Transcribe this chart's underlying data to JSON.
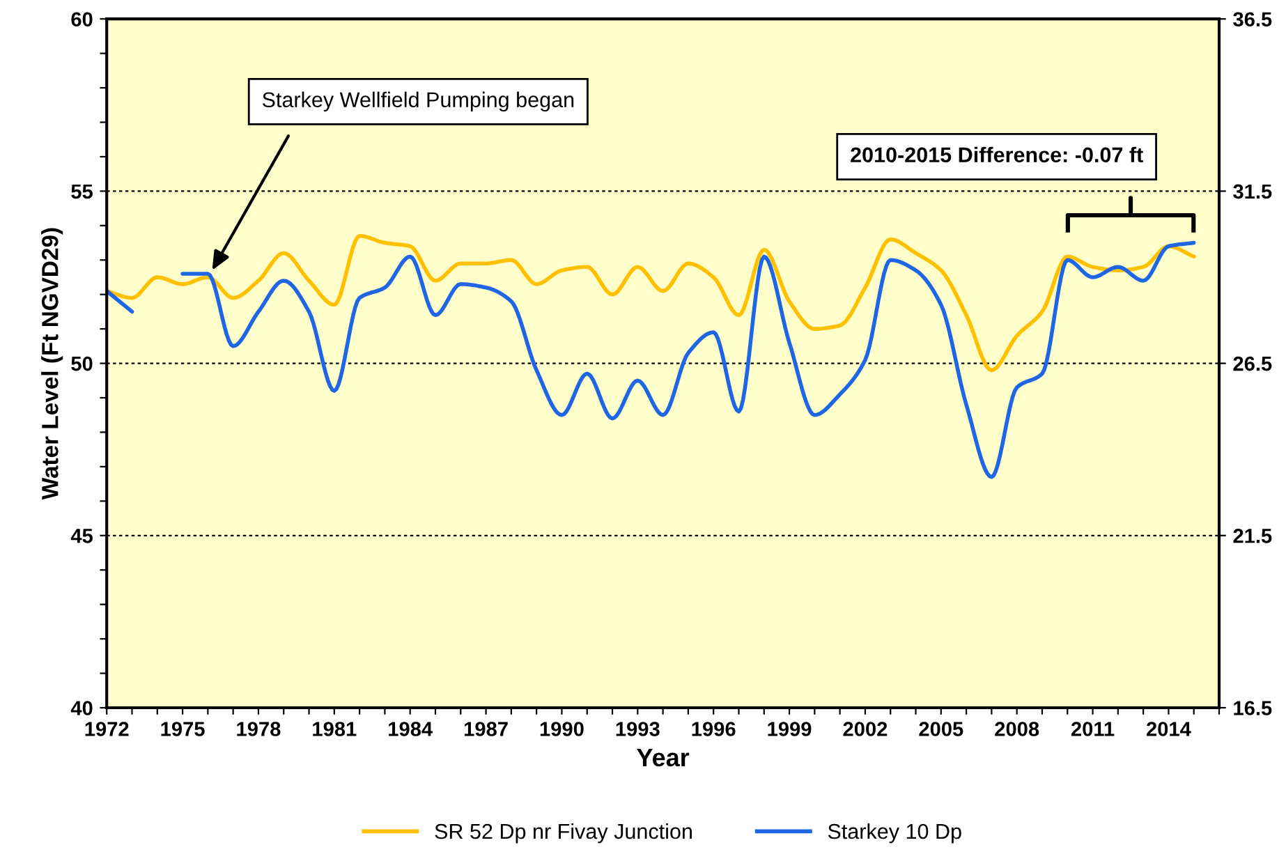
{
  "chart_data": {
    "type": "line",
    "xlabel": "Year",
    "ylabel": "Water Level (Ft NGVD29)",
    "x": [
      1972,
      1973,
      1974,
      1975,
      1976,
      1977,
      1978,
      1979,
      1980,
      1981,
      1982,
      1983,
      1984,
      1985,
      1986,
      1987,
      1988,
      1989,
      1990,
      1991,
      1992,
      1993,
      1994,
      1995,
      1996,
      1997,
      1998,
      1999,
      2000,
      2001,
      2002,
      2003,
      2004,
      2005,
      2006,
      2007,
      2008,
      2009,
      2010,
      2011,
      2012,
      2013,
      2014,
      2015
    ],
    "series": [
      {
        "name": "SR 52 Dp nr Fivay Junction",
        "color": "#ffc000",
        "values": [
          52.1,
          51.9,
          52.5,
          52.3,
          52.5,
          51.9,
          52.4,
          53.2,
          52.4,
          51.7,
          53.7,
          53.5,
          53.4,
          52.4,
          52.9,
          52.9,
          53.0,
          52.3,
          52.7,
          52.8,
          52.0,
          52.8,
          52.1,
          52.9,
          52.5,
          51.4,
          53.3,
          51.8,
          51.0,
          51.1,
          52.2,
          53.6,
          53.2,
          52.7,
          51.4,
          49.8,
          50.8,
          51.5,
          53.1,
          52.8,
          52.7,
          52.8,
          53.4,
          53.1
        ]
      },
      {
        "name": "Starkey 10 Dp",
        "color": "#1f66e5",
        "values": [
          52.1,
          51.5,
          null,
          52.6,
          52.6,
          50.5,
          51.5,
          52.4,
          51.5,
          49.2,
          51.9,
          52.2,
          53.1,
          51.4,
          52.3,
          52.2,
          51.8,
          49.8,
          48.5,
          49.7,
          48.4,
          49.5,
          48.5,
          50.3,
          50.9,
          48.6,
          53.1,
          50.6,
          48.5,
          49.1,
          50.1,
          53.0,
          52.7,
          51.7,
          48.8,
          46.7,
          49.3,
          49.7,
          53.0,
          52.5,
          52.8,
          52.4,
          53.4,
          53.5
        ]
      }
    ],
    "xlim": [
      1972,
      2016
    ],
    "xticks": [
      1972,
      {
        "value": 1973,
        "label": null
      },
      {
        "value": 1974,
        "label": null
      },
      1975,
      {
        "value": 1976,
        "label": null
      },
      {
        "value": 1977,
        "label": null
      },
      1978,
      {
        "value": 1979,
        "label": null
      },
      {
        "value": 1980,
        "label": null
      },
      1981,
      {
        "value": 1982,
        "label": null
      },
      {
        "value": 1983,
        "label": null
      },
      1984,
      {
        "value": 1985,
        "label": null
      },
      {
        "value": 1986,
        "label": null
      },
      1987,
      {
        "value": 1988,
        "label": null
      },
      {
        "value": 1989,
        "label": null
      },
      1990,
      {
        "value": 1991,
        "label": null
      },
      {
        "value": 1992,
        "label": null
      },
      1993,
      {
        "value": 1994,
        "label": null
      },
      {
        "value": 1995,
        "label": null
      },
      1996,
      {
        "value": 1997,
        "label": null
      },
      {
        "value": 1998,
        "label": null
      },
      1999,
      {
        "value": 2000,
        "label": null
      },
      {
        "value": 2001,
        "label": null
      },
      2002,
      {
        "value": 2003,
        "label": null
      },
      {
        "value": 2004,
        "label": null
      },
      2005,
      {
        "value": 2006,
        "label": null
      },
      {
        "value": 2007,
        "label": null
      },
      2008,
      {
        "value": 2009,
        "label": null
      },
      {
        "value": 2010,
        "label": null
      },
      2011,
      {
        "value": 2012,
        "label": null
      },
      {
        "value": 2013,
        "label": null
      },
      2014,
      {
        "value": 2015,
        "label": null
      },
      {
        "value": 2016,
        "label": null
      }
    ],
    "ylim": [
      40,
      60
    ],
    "yticks": [
      40,
      {
        "value": 41,
        "label": null
      },
      {
        "value": 42,
        "label": null
      },
      {
        "value": 43,
        "label": null
      },
      {
        "value": 44,
        "label": null
      },
      45,
      {
        "value": 46,
        "label": null
      },
      {
        "value": 47,
        "label": null
      },
      {
        "value": 48,
        "label": null
      },
      {
        "value": 49,
        "label": null
      },
      50,
      {
        "value": 51,
        "label": null
      },
      {
        "value": 52,
        "label": null
      },
      {
        "value": 53,
        "label": null
      },
      {
        "value": 54,
        "label": null
      },
      55,
      {
        "value": 56,
        "label": null
      },
      {
        "value": 57,
        "label": null
      },
      {
        "value": 58,
        "label": null
      },
      {
        "value": 59,
        "label": null
      },
      60
    ],
    "y2lim": [
      16.5,
      36.5
    ],
    "y2ticks": [
      16.5,
      21.5,
      26.5,
      31.5,
      36.5
    ],
    "grid": "y",
    "legend": "bottom",
    "marker": "none",
    "line_style": "solid",
    "annotations": [
      "Starkey Wellfield Pumping began",
      "2010-2015 Difference: -0.07 ft"
    ]
  }
}
